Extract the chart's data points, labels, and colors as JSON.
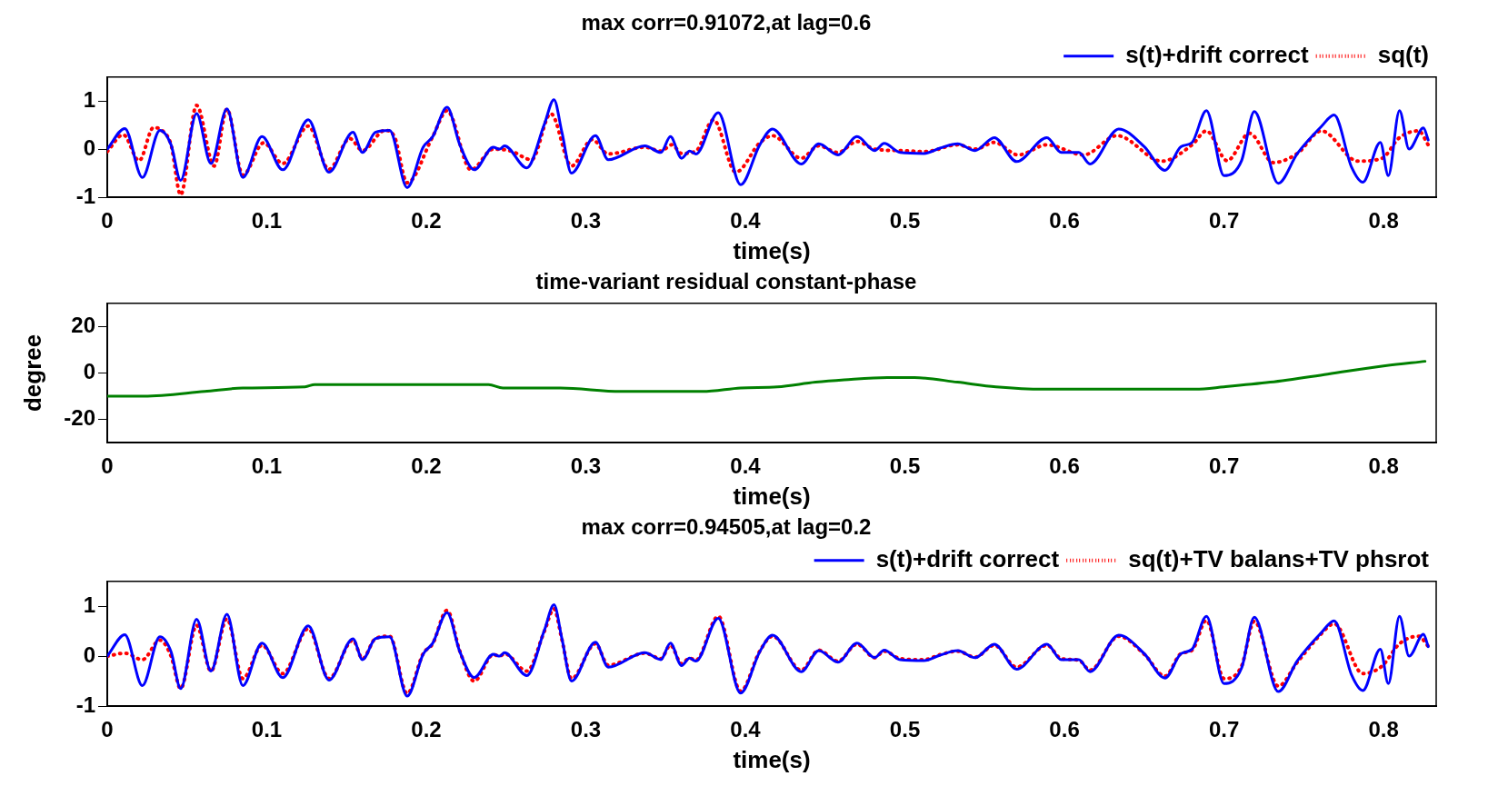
{
  "chart_data": [
    {
      "type": "line",
      "title": "max corr=0.91072,at lag=0.6",
      "xlabel": "time(s)",
      "xlim": [
        0,
        0.833
      ],
      "xticks": [
        0,
        0.1,
        0.2,
        0.3,
        0.4,
        0.5,
        0.6,
        0.7,
        0.8
      ],
      "ylim": [
        -1,
        1.5
      ],
      "yticks": [
        -1,
        0,
        1
      ],
      "grid": false,
      "legend": "top right",
      "series": [
        {
          "name": "s(t)+drift correct",
          "color": "#0000ff",
          "line_style": "solid",
          "x": [
            0,
            0.011,
            0.022,
            0.033,
            0.04,
            0.046,
            0.056,
            0.065,
            0.075,
            0.085,
            0.097,
            0.11,
            0.126,
            0.139,
            0.154,
            0.16,
            0.168,
            0.177,
            0.188,
            0.198,
            0.204,
            0.213,
            0.221,
            0.23,
            0.242,
            0.246,
            0.249,
            0.263,
            0.274,
            0.28,
            0.285,
            0.291,
            0.306,
            0.314,
            0.337,
            0.347,
            0.353,
            0.36,
            0.365,
            0.369,
            0.383,
            0.397,
            0.409,
            0.417,
            0.435,
            0.446,
            0.458,
            0.47,
            0.481,
            0.487,
            0.497,
            0.512,
            0.522,
            0.533,
            0.544,
            0.556,
            0.57,
            0.589,
            0.598,
            0.609,
            0.616,
            0.634,
            0.65,
            0.663,
            0.673,
            0.68,
            0.689,
            0.7,
            0.711,
            0.719,
            0.734,
            0.746,
            0.761,
            0.769,
            0.78,
            0.787,
            0.798,
            0.803,
            0.81,
            0.816,
            0.825,
            0.828
          ],
          "values": [
            0,
            0.43,
            -0.59,
            0.39,
            0.09,
            -0.65,
            0.74,
            -0.3,
            0.84,
            -0.59,
            0.26,
            -0.43,
            0.61,
            -0.48,
            0.35,
            -0.07,
            0.35,
            0.39,
            -0.8,
            0.04,
            0.26,
            0.87,
            0.09,
            -0.43,
            0.04,
            0,
            0.07,
            -0.39,
            0.52,
            1.03,
            0.35,
            -0.5,
            0.28,
            -0.22,
            0.07,
            -0.07,
            0.26,
            -0.19,
            -0.04,
            -0.1,
            0.76,
            -0.74,
            0.09,
            0.42,
            -0.31,
            0.11,
            -0.12,
            0.26,
            -0.03,
            0.12,
            -0.07,
            -0.09,
            0.02,
            0.11,
            -0.03,
            0.24,
            -0.26,
            0.24,
            -0.07,
            -0.07,
            -0.31,
            0.42,
            0.05,
            -0.44,
            0.05,
            0.14,
            0.8,
            -0.55,
            -0.24,
            0.78,
            -0.71,
            -0.09,
            0.47,
            0.71,
            -0.38,
            -0.69,
            0.14,
            -0.55,
            0.8,
            0,
            0.44,
            0.19
          ]
        },
        {
          "name": "sq(t)",
          "color": "#ff0000",
          "line_style": "dotted",
          "x": [
            0,
            0.01,
            0.02,
            0.029,
            0.035,
            0.04,
            0.046,
            0.056,
            0.067,
            0.075,
            0.085,
            0.098,
            0.11,
            0.126,
            0.139,
            0.152,
            0.16,
            0.174,
            0.18,
            0.188,
            0.204,
            0.213,
            0.228,
            0.242,
            0.253,
            0.266,
            0.278,
            0.291,
            0.304,
            0.314,
            0.337,
            0.347,
            0.354,
            0.36,
            0.369,
            0.38,
            0.394,
            0.409,
            0.417,
            0.435,
            0.446,
            0.458,
            0.47,
            0.481,
            0.497,
            0.513,
            0.533,
            0.544,
            0.556,
            0.571,
            0.589,
            0.612,
            0.633,
            0.661,
            0.68,
            0.689,
            0.702,
            0.716,
            0.731,
            0.746,
            0.761,
            0.784,
            0.799,
            0.81,
            0.822,
            0.828
          ],
          "values": [
            -0.05,
            0.3,
            -0.24,
            0.45,
            0.37,
            0.09,
            -0.95,
            0.91,
            -0.35,
            0.83,
            -0.54,
            0.13,
            -0.3,
            0.48,
            -0.42,
            0.22,
            -0.03,
            0.39,
            0.26,
            -0.7,
            0.26,
            0.8,
            -0.43,
            0,
            -0.04,
            -0.22,
            0.74,
            -0.35,
            0.2,
            -0.1,
            0.04,
            -0.04,
            0.09,
            -0.09,
            -0.04,
            0.61,
            -0.48,
            0.13,
            0.28,
            -0.19,
            0.07,
            -0.07,
            0.16,
            0,
            -0.03,
            -0.05,
            0.09,
            0,
            0.14,
            -0.12,
            0.09,
            -0.12,
            0.28,
            -0.25,
            0.09,
            0.38,
            -0.24,
            0.33,
            -0.28,
            -0.09,
            0.38,
            -0.25,
            -0.19,
            0.24,
            0.38,
            0.09
          ]
        }
      ]
    },
    {
      "type": "line",
      "title": "time-variant residual constant-phase",
      "xlabel": "time(s)",
      "ylabel": "degree",
      "xlim": [
        0,
        0.833
      ],
      "xticks": [
        0,
        0.1,
        0.2,
        0.3,
        0.4,
        0.5,
        0.6,
        0.7,
        0.8
      ],
      "ylim": [
        -30,
        30
      ],
      "yticks": [
        -20,
        0,
        20
      ],
      "grid": false,
      "series": [
        {
          "color": "#008000",
          "line_style": "solid",
          "x": [
            0,
            0.023,
            0.061,
            0.085,
            0.124,
            0.13,
            0.239,
            0.248,
            0.284,
            0.322,
            0.373,
            0.397,
            0.42,
            0.444,
            0.462,
            0.489,
            0.506,
            0.533,
            0.557,
            0.587,
            0.682,
            0.7,
            0.729,
            0.765,
            0.8,
            0.826
          ],
          "values": [
            -10,
            -10,
            -8,
            -6.5,
            -6,
            -5,
            -5,
            -6.5,
            -6.5,
            -8,
            -8,
            -6.5,
            -6,
            -4,
            -3,
            -2,
            -2,
            -4,
            -6,
            -7,
            -7,
            -6,
            -4,
            -0.5,
            3,
            5
          ]
        }
      ]
    },
    {
      "type": "line",
      "title": "max corr=0.94505,at lag=0.2",
      "xlabel": "time(s)",
      "xlim": [
        0,
        0.833
      ],
      "xticks": [
        0,
        0.1,
        0.2,
        0.3,
        0.4,
        0.5,
        0.6,
        0.7,
        0.8
      ],
      "ylim": [
        -1,
        1.5
      ],
      "yticks": [
        -1,
        0,
        1
      ],
      "grid": false,
      "legend": "top right",
      "series": [
        {
          "name": "s(t)+drift correct",
          "color": "#0000ff",
          "line_style": "solid",
          "x": [
            0,
            0.011,
            0.022,
            0.033,
            0.04,
            0.046,
            0.056,
            0.065,
            0.075,
            0.085,
            0.097,
            0.11,
            0.126,
            0.139,
            0.154,
            0.16,
            0.168,
            0.177,
            0.188,
            0.198,
            0.204,
            0.213,
            0.221,
            0.23,
            0.242,
            0.246,
            0.249,
            0.263,
            0.274,
            0.28,
            0.285,
            0.291,
            0.306,
            0.314,
            0.337,
            0.347,
            0.353,
            0.36,
            0.365,
            0.369,
            0.383,
            0.397,
            0.409,
            0.417,
            0.435,
            0.446,
            0.458,
            0.47,
            0.481,
            0.487,
            0.497,
            0.512,
            0.522,
            0.533,
            0.544,
            0.556,
            0.57,
            0.589,
            0.598,
            0.609,
            0.616,
            0.634,
            0.65,
            0.663,
            0.673,
            0.68,
            0.689,
            0.7,
            0.711,
            0.719,
            0.734,
            0.746,
            0.761,
            0.769,
            0.78,
            0.787,
            0.798,
            0.803,
            0.81,
            0.816,
            0.825,
            0.828
          ],
          "values": [
            0,
            0.43,
            -0.59,
            0.39,
            0.09,
            -0.65,
            0.74,
            -0.3,
            0.84,
            -0.59,
            0.26,
            -0.43,
            0.61,
            -0.48,
            0.35,
            -0.07,
            0.35,
            0.39,
            -0.8,
            0.04,
            0.26,
            0.87,
            0.09,
            -0.43,
            0.04,
            0,
            0.07,
            -0.39,
            0.52,
            1.03,
            0.35,
            -0.5,
            0.28,
            -0.22,
            0.07,
            -0.07,
            0.26,
            -0.19,
            -0.04,
            -0.1,
            0.76,
            -0.74,
            0.09,
            0.42,
            -0.31,
            0.11,
            -0.12,
            0.26,
            -0.03,
            0.12,
            -0.07,
            -0.09,
            0.02,
            0.11,
            -0.03,
            0.24,
            -0.26,
            0.24,
            -0.07,
            -0.07,
            -0.31,
            0.42,
            0.05,
            -0.44,
            0.05,
            0.14,
            0.8,
            -0.55,
            -0.24,
            0.78,
            -0.71,
            -0.09,
            0.47,
            0.71,
            -0.38,
            -0.69,
            0.14,
            -0.55,
            0.8,
            0,
            0.44,
            0.19
          ]
        },
        {
          "name": "sq(t)+TV balans+TV phsrot",
          "color": "#ff0000",
          "line_style": "dotted",
          "x": [
            0,
            0.011,
            0.022,
            0.033,
            0.04,
            0.046,
            0.056,
            0.065,
            0.075,
            0.085,
            0.097,
            0.11,
            0.126,
            0.139,
            0.154,
            0.16,
            0.168,
            0.177,
            0.188,
            0.198,
            0.204,
            0.213,
            0.221,
            0.23,
            0.242,
            0.246,
            0.249,
            0.263,
            0.274,
            0.28,
            0.285,
            0.291,
            0.306,
            0.314,
            0.337,
            0.347,
            0.353,
            0.36,
            0.365,
            0.369,
            0.383,
            0.397,
            0.409,
            0.417,
            0.435,
            0.446,
            0.458,
            0.47,
            0.481,
            0.487,
            0.497,
            0.512,
            0.522,
            0.533,
            0.544,
            0.556,
            0.57,
            0.589,
            0.598,
            0.609,
            0.616,
            0.634,
            0.65,
            0.663,
            0.673,
            0.68,
            0.689,
            0.7,
            0.711,
            0.719,
            0.734,
            0.746,
            0.761,
            0.769,
            0.787,
            0.799,
            0.81,
            0.822,
            0.828
          ],
          "values": [
            0,
            0.06,
            -0.07,
            0.32,
            0,
            -0.65,
            0.62,
            -0.3,
            0.75,
            -0.45,
            0.22,
            -0.35,
            0.55,
            -0.45,
            0.32,
            -0.05,
            0.35,
            0.4,
            -0.75,
            0.05,
            0.25,
            0.92,
            0.1,
            -0.5,
            0.03,
            0,
            0.05,
            -0.3,
            0.5,
            0.95,
            0.33,
            -0.45,
            0.25,
            -0.18,
            0.06,
            -0.05,
            0.22,
            -0.15,
            -0.04,
            -0.08,
            0.8,
            -0.7,
            0.1,
            0.4,
            -0.28,
            0.12,
            -0.1,
            0.24,
            -0.03,
            0.1,
            -0.05,
            -0.07,
            0.03,
            0.1,
            -0.02,
            0.22,
            -0.22,
            0.22,
            -0.05,
            -0.08,
            -0.28,
            0.4,
            0.04,
            -0.4,
            0.05,
            0.12,
            0.72,
            -0.45,
            -0.2,
            0.7,
            -0.6,
            -0.12,
            0.45,
            0.65,
            -0.35,
            -0.2,
            0.25,
            0.4,
            0.2
          ]
        }
      ]
    }
  ]
}
